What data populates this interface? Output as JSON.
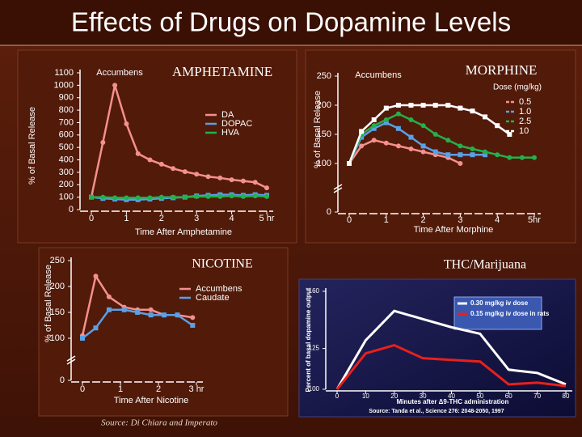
{
  "title": "Effects of Drugs on Dopamine Levels",
  "source": "Source: Di Chiara and Imperato",
  "chart_data": [
    {
      "type": "line",
      "title": "AMPHETAMINE",
      "subtitle": "Accumbens",
      "x_label": "Time After Amphetamine",
      "y_label": "% of Basal Release",
      "xlim": [
        0,
        5
      ],
      "xticks": [
        0,
        1,
        2,
        3,
        4,
        {
          "value": 5,
          "label": "5 hr"
        }
      ],
      "ylim": [
        0,
        1100
      ],
      "yticks": [
        0,
        100,
        200,
        300,
        400,
        500,
        600,
        700,
        800,
        900,
        1000,
        1100
      ],
      "series": [
        {
          "name": "DA",
          "color": "#f4908e",
          "x": [
            0,
            0.33,
            0.67,
            1,
            1.33,
            1.67,
            2,
            2.33,
            2.67,
            3,
            3.33,
            3.67,
            4,
            4.33,
            4.67,
            5
          ],
          "values": [
            100,
            540,
            1000,
            690,
            450,
            400,
            365,
            330,
            305,
            285,
            265,
            255,
            240,
            230,
            220,
            175
          ]
        },
        {
          "name": "DOPAC",
          "color": "#5aa0e6",
          "x": [
            0,
            0.33,
            0.67,
            1,
            1.33,
            1.67,
            2,
            2.33,
            2.67,
            3,
            3.33,
            3.67,
            4,
            4.33,
            4.67,
            5
          ],
          "values": [
            100,
            90,
            85,
            80,
            80,
            85,
            90,
            95,
            100,
            110,
            115,
            120,
            120,
            115,
            120,
            115
          ]
        },
        {
          "name": "HVA",
          "color": "#22b14c",
          "x": [
            0,
            0.33,
            0.67,
            1,
            1.33,
            1.67,
            2,
            2.33,
            2.67,
            3,
            3.33,
            3.67,
            4,
            4.33,
            4.67,
            5
          ],
          "values": [
            100,
            100,
            95,
            95,
            95,
            95,
            100,
            100,
            100,
            105,
            105,
            105,
            110,
            105,
            110,
            105
          ]
        }
      ]
    },
    {
      "type": "line",
      "title": "MORPHINE",
      "subtitle": "Accumbens",
      "legend_title": "Dose (mg/kg)",
      "x_label": "Time After Morphine",
      "y_label": "% of Basal Release",
      "xlim": [
        0,
        5
      ],
      "xticks": [
        0,
        1,
        2,
        3,
        4,
        {
          "value": 5,
          "label": "5hr"
        }
      ],
      "ylim": [
        0,
        250
      ],
      "y_break": [
        0,
        100
      ],
      "yticks": [
        0,
        100,
        150,
        200,
        250
      ],
      "series": [
        {
          "name": "0.5",
          "color": "#f4908e",
          "x": [
            0,
            0.33,
            0.67,
            1,
            1.33,
            1.67,
            2,
            2.33,
            2.67,
            3
          ],
          "values": [
            100,
            130,
            140,
            135,
            130,
            125,
            120,
            115,
            110,
            100
          ]
        },
        {
          "name": "1.0",
          "color": "#5aa0e6",
          "x": [
            0,
            0.33,
            0.67,
            1,
            1.33,
            1.67,
            2,
            2.33,
            2.67,
            3,
            3.33,
            3.67
          ],
          "values": [
            100,
            145,
            160,
            170,
            160,
            145,
            130,
            120,
            115,
            115,
            115,
            115
          ]
        },
        {
          "name": "2.5",
          "color": "#22b14c",
          "x": [
            0,
            0.33,
            0.67,
            1,
            1.33,
            1.67,
            2,
            2.33,
            2.67,
            3,
            3.33,
            3.67,
            4,
            4.33,
            4.67,
            5
          ],
          "values": [
            100,
            150,
            165,
            175,
            185,
            175,
            165,
            150,
            140,
            130,
            125,
            120,
            115,
            110,
            110,
            110
          ]
        },
        {
          "name": "10",
          "color": "#ffffff",
          "x": [
            0,
            0.33,
            0.67,
            1,
            1.33,
            1.67,
            2,
            2.33,
            2.67,
            3,
            3.33,
            3.67,
            4,
            4.33
          ],
          "values": [
            100,
            155,
            175,
            195,
            200,
            200,
            200,
            200,
            200,
            195,
            190,
            180,
            165,
            150
          ]
        }
      ]
    },
    {
      "type": "line",
      "title": "NICOTINE",
      "x_label": "Time After Nicotine",
      "y_label": "% of Basal Release",
      "xlim": [
        0,
        3
      ],
      "xticks": [
        0,
        1,
        2,
        {
          "value": 3,
          "label": "3 hr"
        }
      ],
      "ylim": [
        0,
        250
      ],
      "y_break": [
        0,
        100
      ],
      "yticks": [
        0,
        100,
        150,
        200,
        250
      ],
      "series": [
        {
          "name": "Accumbens",
          "color": "#f4908e",
          "x": [
            0,
            0.35,
            0.7,
            1.1,
            1.45,
            1.8,
            2.15,
            2.5,
            2.9
          ],
          "values": [
            105,
            220,
            180,
            160,
            155,
            155,
            145,
            145,
            140
          ]
        },
        {
          "name": "Caudate",
          "color": "#5aa0e6",
          "x": [
            0,
            0.35,
            0.7,
            1.1,
            1.45,
            1.8,
            2.15,
            2.5,
            2.9
          ],
          "values": [
            100,
            120,
            155,
            155,
            150,
            145,
            145,
            145,
            125
          ]
        }
      ]
    },
    {
      "type": "line",
      "title": "THC/Marijuana",
      "x_label": "Minutes after Δ9-THC administration",
      "y_label": "Percent of basal dopamine output",
      "source": "Source: Tanda et al., Science 276: 2048-2050, 1997",
      "xlim": [
        0,
        80
      ],
      "xticks": [
        0,
        10,
        20,
        30,
        40,
        50,
        60,
        70,
        80
      ],
      "ylim": [
        100,
        160
      ],
      "yticks": [
        100,
        125,
        160
      ],
      "series": [
        {
          "name": "0.30 mg/kg iv dose",
          "color": "#ffffff",
          "x": [
            0,
            10,
            20,
            30,
            40,
            50,
            60,
            70,
            80
          ],
          "values": [
            100,
            130,
            148,
            143,
            138,
            134,
            112,
            110,
            103
          ]
        },
        {
          "name": "0.15 mg/kg iv dose in rats",
          "color": "#e8201c",
          "x": [
            0,
            10,
            20,
            30,
            40,
            50,
            60,
            70,
            80
          ],
          "values": [
            100,
            122,
            127,
            119,
            118,
            117,
            103,
            104,
            102
          ]
        }
      ]
    }
  ]
}
